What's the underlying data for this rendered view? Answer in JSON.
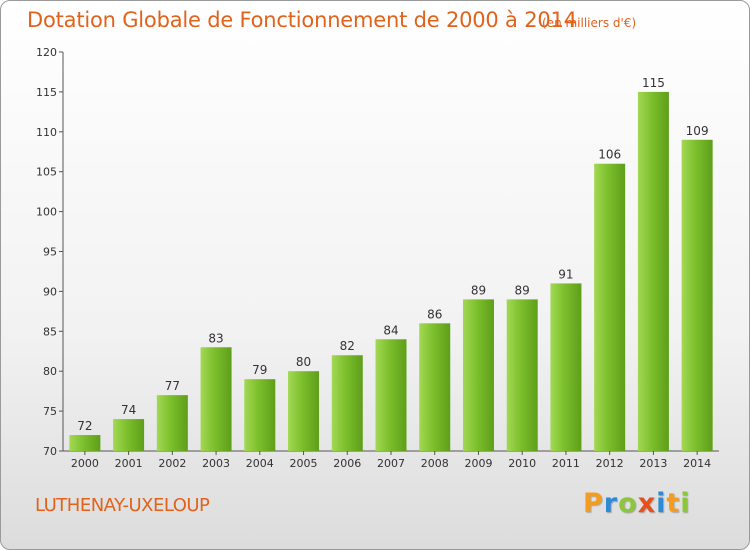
{
  "chart_data": {
    "type": "bar",
    "title": "Dotation Globale de Fonctionnement de 2000 à 2014",
    "subtitle": "(en milliers d'€)",
    "categories": [
      "2000",
      "2001",
      "2002",
      "2003",
      "2004",
      "2005",
      "2006",
      "2007",
      "2008",
      "2009",
      "2010",
      "2011",
      "2012",
      "2013",
      "2014"
    ],
    "values": [
      72,
      74,
      77,
      83,
      79,
      80,
      82,
      84,
      86,
      89,
      89,
      91,
      106,
      115,
      109
    ],
    "data_labels": [
      "72",
      "74",
      "77",
      "83",
      "79",
      "80",
      "82",
      "84",
      "86",
      "89",
      "89",
      "91",
      "106",
      "115",
      "109"
    ],
    "yticks": [
      "70",
      "75",
      "80",
      "85",
      "90",
      "95",
      "100",
      "105",
      "110",
      "115",
      "120"
    ],
    "ylim": [
      70,
      120
    ],
    "grid": false,
    "legend": "none",
    "bar_color": "#7cbf2c",
    "bar_color_light": "#a3d854",
    "bar_color_dark": "#5e9e1a"
  },
  "footer": {
    "commune": "LUTHENAY-UXELOUP",
    "brand_letters": [
      {
        "char": "P",
        "color": "#f39c1f"
      },
      {
        "char": "r",
        "color": "#2f8ad4"
      },
      {
        "char": "o",
        "color": "#8cc63e"
      },
      {
        "char": "x",
        "color": "#e8501b"
      },
      {
        "char": "i",
        "color": "#2f8ad4"
      },
      {
        "char": "t",
        "color": "#f39c1f"
      },
      {
        "char": "i",
        "color": "#8cc63e"
      }
    ]
  }
}
